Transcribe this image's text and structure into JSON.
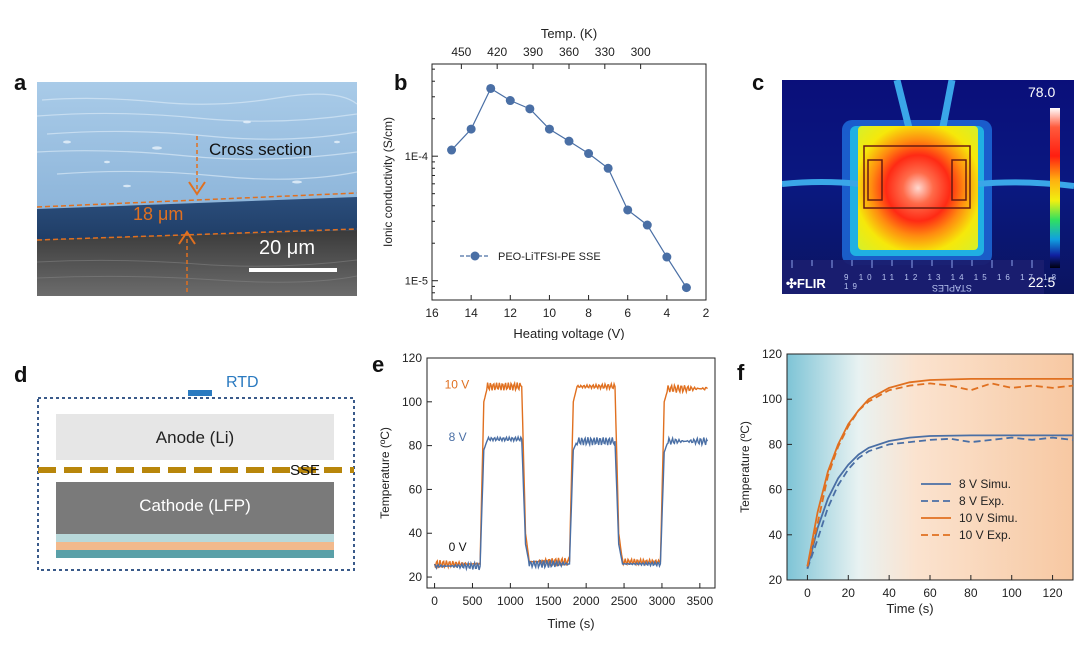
{
  "panels": {
    "a": {
      "letter": "a",
      "cross_section_label": "Cross section",
      "thickness_label": "18 μm",
      "scale_bar_label": "20 μm"
    },
    "b": {
      "letter": "b"
    },
    "c": {
      "letter": "c",
      "scale_max": "78.0",
      "scale_min": "22.5",
      "brand": "FLIR",
      "ruler_text": "STAPLES",
      "ruler_numbers": [
        "9",
        "10",
        "11",
        "12",
        "13",
        "14",
        "15",
        "16",
        "17",
        "18",
        "19"
      ]
    },
    "d": {
      "letter": "d",
      "rtd_label": "RTD",
      "anode_label": "Anode (Li)",
      "sse_label": "SSE",
      "cathode_label": "Cathode (LFP)"
    },
    "e": {
      "letter": "e"
    },
    "f": {
      "letter": "f"
    }
  },
  "colors": {
    "orange": "#E07020",
    "blue": "#4A6FA5",
    "sem_bg": "#8FB7DA"
  },
  "chart_data": [
    {
      "id": "b",
      "type": "line",
      "title": "",
      "xlabel": "Heating voltage (V)",
      "ylabel": "Ionic conductivity (S/cm)",
      "xlim": [
        16,
        2
      ],
      "x_ticks": [
        "16",
        "14",
        "12",
        "10",
        "8",
        "6",
        "4",
        "2"
      ],
      "x_tick_values": [
        16,
        14,
        12,
        10,
        8,
        6,
        4,
        2
      ],
      "y_scale": "log",
      "ylim": [
        7e-06,
        0.00055
      ],
      "y_tick_labels": [
        "1E-5",
        "1E-4"
      ],
      "y_tick_values": [
        1e-05,
        0.0001
      ],
      "top_axis_label": "Temp. (K)",
      "top_ticks": [
        "450",
        "420",
        "390",
        "360",
        "330",
        "300"
      ],
      "top_tick_positions_v": [
        14.5,
        12.67,
        10.84,
        9.0,
        7.17,
        5.34
      ],
      "legend": "PEO-LiTFSI-PE SSE",
      "x": [
        15,
        14,
        13,
        12,
        11,
        10,
        9,
        8,
        7,
        6,
        5,
        4,
        3
      ],
      "values": [
        0.000112,
        0.000165,
        0.00035,
        0.00028,
        0.00024,
        0.000165,
        0.000132,
        0.000105,
        8e-05,
        3.7e-05,
        2.8e-05,
        1.55e-05,
        8.8e-06
      ]
    },
    {
      "id": "e",
      "type": "line",
      "xlabel": "Time (s)",
      "ylabel": "Temperature (ºC)",
      "xlim": [
        -100,
        3700
      ],
      "ylim": [
        15,
        120
      ],
      "x_ticks": [
        "0",
        "500",
        "1000",
        "1500",
        "2000",
        "2500",
        "3000",
        "3500"
      ],
      "x_tick_values": [
        0,
        500,
        1000,
        1500,
        2000,
        2500,
        3000,
        3500
      ],
      "y_ticks": [
        "20",
        "40",
        "60",
        "80",
        "100",
        "120"
      ],
      "y_tick_values": [
        20,
        40,
        60,
        80,
        100,
        120
      ],
      "annotations": [
        "10 V",
        "8 V",
        "0 V"
      ],
      "series": [
        {
          "name": "10 V",
          "x": [
            0,
            600,
            650,
            700,
            1150,
            1200,
            1250,
            1780,
            1830,
            1880,
            2380,
            2430,
            2480,
            2980,
            3030,
            3080,
            3600
          ],
          "values": [
            26,
            26,
            100,
            107,
            107,
            40,
            27,
            27,
            100,
            107,
            107,
            40,
            27,
            27,
            100,
            106,
            106
          ]
        },
        {
          "name": "8 V",
          "x": [
            0,
            600,
            650,
            700,
            1150,
            1200,
            1250,
            1780,
            1830,
            1880,
            2380,
            2430,
            2480,
            2980,
            3030,
            3080,
            3600
          ],
          "values": [
            25,
            25,
            78,
            83,
            83,
            35,
            26,
            26,
            78,
            82,
            82,
            35,
            26,
            26,
            77,
            82,
            82
          ]
        }
      ]
    },
    {
      "id": "f",
      "type": "line",
      "xlabel": "Time (s)",
      "ylabel": "Temperature (ºC)",
      "xlim": [
        -10,
        130
      ],
      "ylim": [
        20,
        120
      ],
      "x_ticks": [
        "0",
        "20",
        "40",
        "60",
        "80",
        "100",
        "120"
      ],
      "x_tick_values": [
        0,
        20,
        40,
        60,
        80,
        100,
        120
      ],
      "y_ticks": [
        "20",
        "40",
        "60",
        "80",
        "100",
        "120"
      ],
      "y_tick_values": [
        20,
        40,
        60,
        80,
        100,
        120
      ],
      "legend": [
        "8 V Simu.",
        "8 V Exp.",
        "10 V Simu.",
        "10 V Exp."
      ],
      "series": [
        {
          "name": "8 V Simu.",
          "style": "solid",
          "x": [
            0,
            5,
            10,
            15,
            20,
            25,
            30,
            40,
            50,
            60,
            80,
            100,
            130
          ],
          "values": [
            25,
            43,
            56,
            65,
            71,
            75.5,
            78.5,
            81.5,
            83,
            83.7,
            84,
            84,
            84
          ]
        },
        {
          "name": "8 V Exp.",
          "style": "dashed",
          "x": [
            0,
            5,
            10,
            15,
            20,
            25,
            30,
            40,
            50,
            60,
            70,
            80,
            90,
            100,
            110,
            120,
            130
          ],
          "values": [
            25,
            38,
            52,
            62,
            69,
            74,
            77,
            80,
            81,
            82,
            82.5,
            81,
            82,
            83,
            82,
            83,
            82
          ]
        },
        {
          "name": "10 V Simu.",
          "style": "solid",
          "x": [
            0,
            5,
            10,
            15,
            20,
            25,
            30,
            40,
            50,
            60,
            80,
            100,
            130
          ],
          "values": [
            26,
            50,
            68,
            80,
            89,
            95,
            100,
            105,
            107.5,
            108.5,
            109,
            109,
            109
          ]
        },
        {
          "name": "10 V Exp.",
          "style": "dashed",
          "x": [
            0,
            5,
            10,
            15,
            20,
            25,
            30,
            40,
            50,
            60,
            70,
            80,
            90,
            100,
            110,
            120,
            130
          ],
          "values": [
            26,
            45,
            66,
            79,
            88,
            95,
            99,
            104,
            106,
            107,
            106,
            104,
            107,
            105,
            106,
            105,
            106
          ]
        }
      ]
    }
  ]
}
